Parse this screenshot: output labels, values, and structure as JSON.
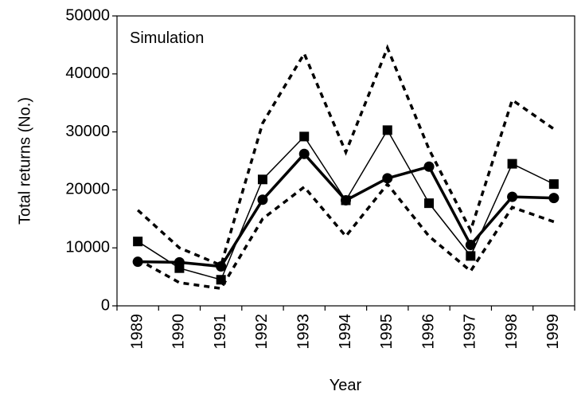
{
  "chart_data": {
    "type": "line",
    "annotation": "Simulation",
    "xlabel": "Year",
    "ylabel": "Total returns (No.)",
    "categories": [
      "1989",
      "1990",
      "1991",
      "1992",
      "1993",
      "1994",
      "1995",
      "1996",
      "1997",
      "1998",
      "1999"
    ],
    "series": [
      {
        "color": "#000000",
        "marker": "square",
        "dash": "solid",
        "width": 1.5,
        "values": [
          11100,
          6500,
          4500,
          21800,
          29200,
          18200,
          30300,
          17700,
          8600,
          24500,
          21000
        ]
      },
      {
        "color": "#000000",
        "marker": "circle",
        "dash": "solid",
        "width": 3.5,
        "values": [
          7600,
          7500,
          6800,
          18300,
          26200,
          18200,
          22000,
          24000,
          10500,
          18800,
          18600
        ]
      },
      {
        "color": "#000000",
        "marker": "none",
        "dash": "dashed",
        "width": 3.5,
        "values": [
          16500,
          10000,
          7000,
          31500,
          43500,
          26500,
          44500,
          27000,
          13000,
          35500,
          30500
        ]
      },
      {
        "color": "#000000",
        "marker": "none",
        "dash": "dashed",
        "width": 3.5,
        "values": [
          8000,
          4000,
          3000,
          15000,
          20500,
          12000,
          21000,
          12000,
          6000,
          17000,
          14500
        ]
      }
    ],
    "ylim": [
      0,
      50000
    ],
    "yticks": [
      0,
      10000,
      20000,
      30000,
      40000,
      50000
    ],
    "grid": false
  }
}
